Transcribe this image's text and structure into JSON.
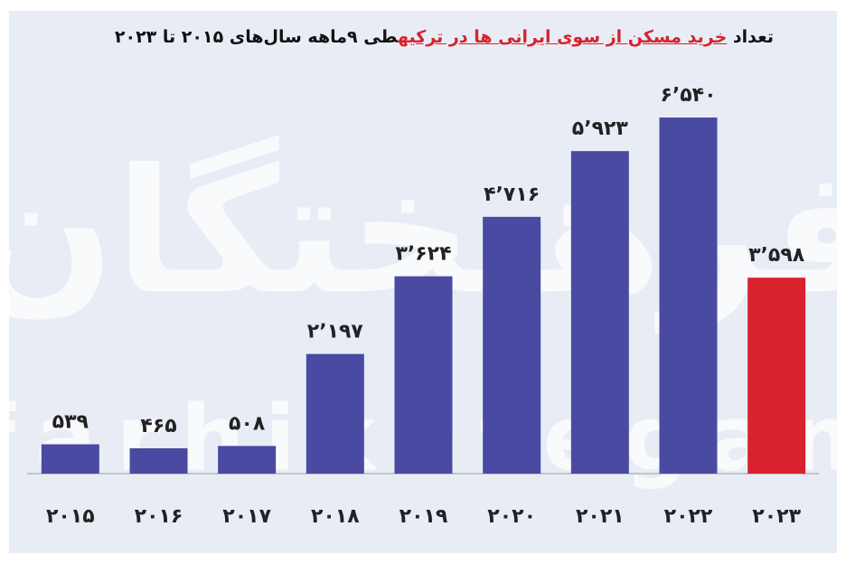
{
  "chart_data": {
    "type": "bar",
    "title": [
      "تعداد",
      "خرید مسکن از سوی ایرانی ها در ترکیه",
      "طی ۹ماهه سال‌های ۲۰۱۵ تا ۲۰۲۳"
    ],
    "watermark": [
      "فرهیختگان",
      "farhikhtegan"
    ],
    "categories": [
      "۲۰۱۵",
      "۲۰۱۶",
      "۲۰۱۷",
      "۲۰۱۸",
      "۲۰۱۹",
      "۲۰۲۰",
      "۲۰۲۱",
      "۲۰۲۲",
      "۲۰۲۳"
    ],
    "values": [
      539,
      465,
      508,
      2197,
      3624,
      4716,
      5923,
      6540,
      3598
    ],
    "value_labels": [
      "۵۳۹",
      "۴۶۵",
      "۵۰۸",
      "۲٬۱۹۷",
      "۳٬۶۲۴",
      "۴٬۷۱۶",
      "۵٬۹۲۳",
      "۶٬۵۴۰",
      "۳٬۵۹۸"
    ],
    "colors": [
      "#4a4aa3",
      "#4a4aa3",
      "#4a4aa3",
      "#4a4aa3",
      "#4a4aa3",
      "#4a4aa3",
      "#4a4aa3",
      "#4a4aa3",
      "#d8222d"
    ]
  }
}
